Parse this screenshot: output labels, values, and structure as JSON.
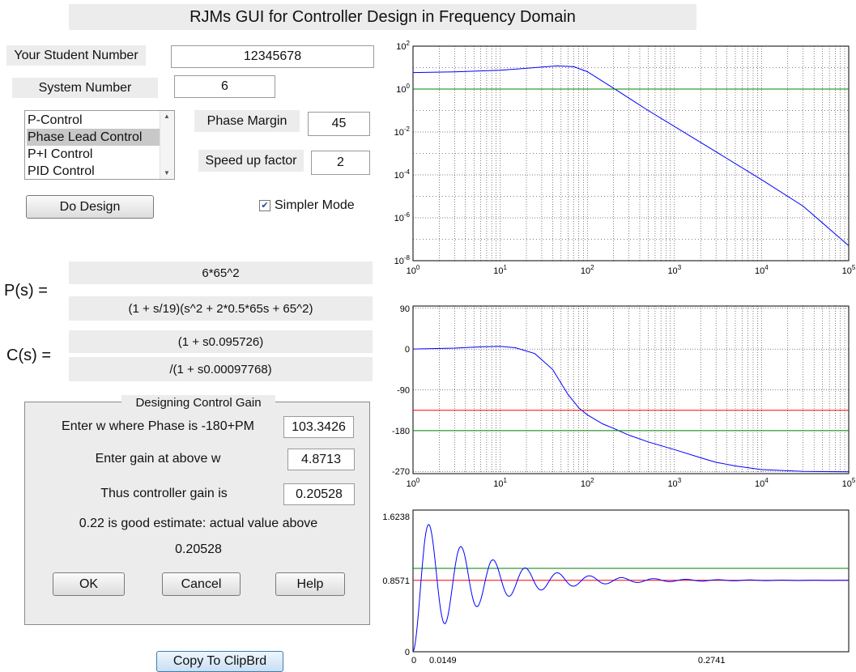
{
  "title": "RJMs GUI for Controller Design in Frequency Domain",
  "student": {
    "label": "Your Student Number",
    "value": "12345678"
  },
  "system": {
    "label": "System Number",
    "value": "6"
  },
  "controller_list": {
    "items": [
      "P-Control",
      "Phase Lead Control",
      "P+I Control",
      "PID Control"
    ],
    "selected": "Phase Lead Control"
  },
  "phase_margin": {
    "label": "Phase Margin",
    "value": "45"
  },
  "speed_up": {
    "label": "Speed up factor",
    "value": "2"
  },
  "do_design_label": "Do Design",
  "simpler_mode": {
    "label": "Simpler Mode",
    "checked": true
  },
  "plant": {
    "label": "P(s) =",
    "numerator": "6*65^2",
    "denominator": "(1 + s/19)(s^2 + 2*0.5*65s + 65^2)"
  },
  "controller": {
    "label": "C(s) =",
    "numerator": "(1 + s0.095726)",
    "denominator": "/(1 + s0.00097768)"
  },
  "gain_panel": {
    "title": "Designing Control Gain",
    "w_label": "Enter w where Phase is -180+PM",
    "w_value": "103.3426",
    "gain_label": "Enter gain at above w",
    "gain_value": "4.8713",
    "ctrl_gain_label": "Thus controller gain is",
    "ctrl_gain_value": "0.20528",
    "estimate_text": "0.22 is good estimate: actual value above",
    "actual_value": "0.20528",
    "ok_label": "OK",
    "cancel_label": "Cancel",
    "help_label": "Help"
  },
  "copy_label": "Copy To ClipBrd",
  "colors": {
    "trace": "#0000ff",
    "ref_green": "#008000",
    "ref_red": "#ff0000",
    "panel": "#ececec"
  },
  "chart_data": [
    {
      "type": "line",
      "title": "",
      "xscale": "log",
      "yscale": "log",
      "xlim": [
        1,
        100000
      ],
      "ylim": [
        1e-08,
        100
      ],
      "x_ticks": [
        "10^0",
        "10^1",
        "10^2",
        "10^3",
        "10^4",
        "10^5"
      ],
      "y_ticks": [
        "10^2",
        "10^0",
        "10^-2",
        "10^-4",
        "10^-6",
        "10^-8"
      ],
      "grid": true,
      "series": [
        {
          "color": "#0000ff",
          "x": [
            1,
            3,
            10,
            25,
            45,
            70,
            100,
            200,
            500,
            1000,
            3000,
            10000,
            30000,
            100000
          ],
          "y": [
            5.9,
            6.3,
            7.5,
            10,
            12,
            11,
            6.5,
            1.1,
            0.1,
            0.018,
            0.0012,
            6e-05,
            3.5e-06,
            5e-08
          ]
        },
        {
          "color": "#008000",
          "x": [
            1,
            100000
          ],
          "y": [
            1,
            1
          ]
        }
      ]
    },
    {
      "type": "line",
      "title": "",
      "xscale": "log",
      "xlim": [
        1,
        100000
      ],
      "ylim": [
        -275,
        95
      ],
      "x_ticks": [
        "10^0",
        "10^1",
        "10^2",
        "10^3",
        "10^4",
        "10^5"
      ],
      "y_ticks": [
        "90",
        "0",
        "-90",
        "-180",
        "-270"
      ],
      "grid": true,
      "series": [
        {
          "color": "#0000ff",
          "x": [
            1,
            3,
            6,
            10,
            15,
            25,
            40,
            60,
            80,
            100,
            150,
            200,
            300,
            500,
            1000,
            2000,
            3000,
            5000,
            10000,
            30000,
            100000
          ],
          "y": [
            0,
            2,
            5,
            6,
            3,
            -10,
            -45,
            -100,
            -130,
            -145,
            -165,
            -175,
            -190,
            -205,
            -222,
            -240,
            -250,
            -258,
            -266,
            -270,
            -271
          ]
        },
        {
          "color": "#008000",
          "x": [
            1,
            100000
          ],
          "y": [
            -180,
            -180
          ]
        },
        {
          "color": "#ff0000",
          "x": [
            1,
            100000
          ],
          "y": [
            -135,
            -135
          ]
        }
      ]
    },
    {
      "type": "line",
      "title": "",
      "xlim": [
        0,
        0.4
      ],
      "ylim": [
        0,
        1.7
      ],
      "x_ticks": [
        "0",
        "0.0149",
        "0.2741"
      ],
      "y_ticks": [
        "0",
        "0.8571",
        "1.6238"
      ],
      "grid": false,
      "series": [
        {
          "color": "#0000ff",
          "type": "damped_step",
          "final": 0.8571,
          "peak": 1.6238,
          "t_peak": 0.0149,
          "period": 0.0295,
          "decay": 17,
          "t_end": 0.4
        },
        {
          "color": "#008000",
          "x": [
            0,
            0.4
          ],
          "y": [
            1.0,
            1.0
          ]
        },
        {
          "color": "#ff0000",
          "x": [
            0,
            0.4
          ],
          "y": [
            0.8571,
            0.8571
          ]
        }
      ]
    }
  ]
}
